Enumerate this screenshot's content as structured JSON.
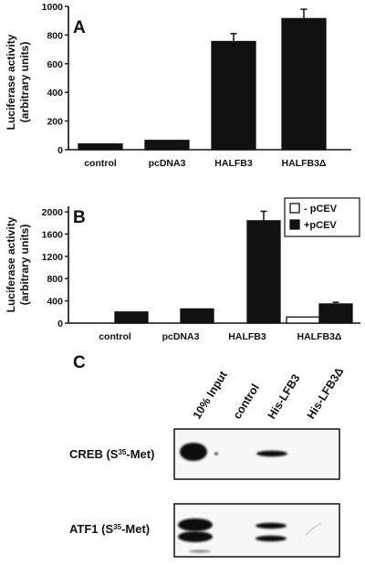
{
  "chart_data": [
    {
      "panel": "A",
      "type": "bar",
      "categories": [
        "control",
        "pcDNA3",
        "HALFB3",
        "HALFB3Δ"
      ],
      "series": [
        {
          "values": [
            40,
            65,
            755,
            915
          ],
          "errors": [
            0,
            0,
            55,
            65
          ]
        }
      ],
      "ylabel": "Luciferase activity",
      "ylabel_units": "(arbitrary units)",
      "ylim": [
        0,
        1000
      ],
      "yticks": [
        "0",
        "200",
        "400",
        "600",
        "800",
        "1000"
      ],
      "grid": false
    },
    {
      "panel": "B",
      "type": "bar",
      "categories": [
        "control",
        "pcDNA3",
        "HALFB3",
        "HALFB3Δ"
      ],
      "series": [
        {
          "name": "- pCEV",
          "color": "#ffffff",
          "values": [
            0,
            0,
            0,
            110
          ],
          "errors": [
            0,
            0,
            0,
            0
          ]
        },
        {
          "name": "+pCEV",
          "color": "#111111",
          "values": [
            200,
            255,
            1840,
            345
          ],
          "errors": [
            0,
            0,
            170,
            30
          ]
        }
      ],
      "ylabel": "Luciferase activity",
      "ylabel_units": "(arbitrary units)",
      "ylim": [
        0,
        2100
      ],
      "yticks": [
        "0",
        "400",
        "800",
        "1200",
        "1600",
        "2000"
      ],
      "legend_position": "top-right",
      "grid": false
    }
  ],
  "panel_c": {
    "label": "C",
    "lanes": [
      "10% Input",
      "control",
      "His-LFB3",
      "His-LFB3Δ"
    ],
    "gels": [
      {
        "label_prefix": "CREB (S",
        "label_sup": "35",
        "label_suffix": "-Met)"
      },
      {
        "label_prefix": "ATF1 (S",
        "label_sup": "35",
        "label_suffix": "-Met)"
      }
    ]
  }
}
